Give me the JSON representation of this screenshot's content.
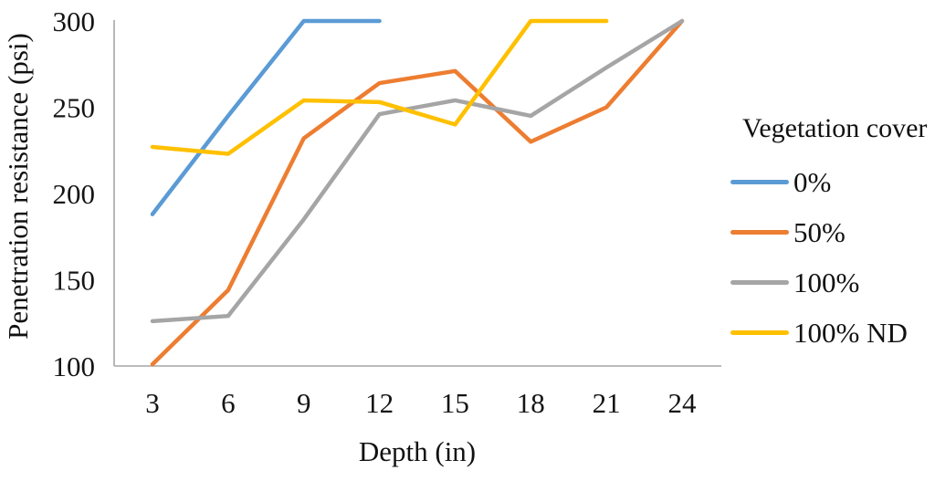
{
  "chart_data": {
    "type": "line",
    "title": "",
    "xlabel": "Depth (in)",
    "ylabel": "Penetration resistance (psi)",
    "x": [
      3,
      6,
      9,
      12,
      15,
      18,
      21,
      24
    ],
    "xlim": [
      3,
      24
    ],
    "ylim": [
      100,
      300
    ],
    "yticks": [
      100,
      150,
      200,
      250,
      300
    ],
    "grid": false,
    "legend_position": "right",
    "legend_title": "Vegetation cover",
    "axis_color": "#A6A6A6",
    "series": [
      {
        "name": "0%",
        "color": "#5B9BD5",
        "values": [
          188,
          245,
          300,
          300,
          null,
          null,
          null,
          null
        ]
      },
      {
        "name": "50%",
        "color": "#ED7D31",
        "values": [
          101,
          144,
          232,
          264,
          271,
          230,
          250,
          300
        ]
      },
      {
        "name": "100%",
        "color": "#A5A5A5",
        "values": [
          126,
          129,
          185,
          246,
          254,
          245,
          273,
          300
        ]
      },
      {
        "name": "100% ND",
        "color": "#FFC000",
        "values": [
          227,
          223,
          254,
          253,
          240,
          300,
          300,
          null
        ]
      }
    ]
  }
}
